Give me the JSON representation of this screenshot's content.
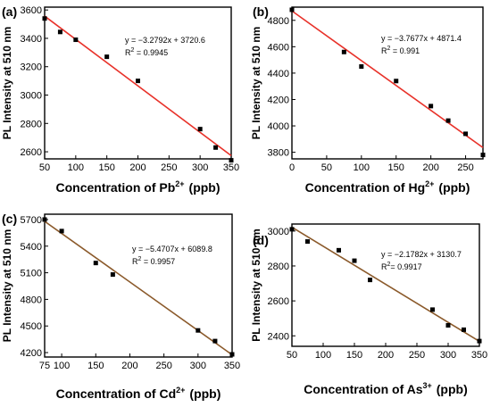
{
  "chart_data": [
    {
      "type": "scatter",
      "panel_label": "(a)",
      "xlabel_main": "Concentration of Pb",
      "xlabel_sup": "2+",
      "xlabel_unit": "(ppb)",
      "ylabel": "PL Intensity at 510 nm",
      "xlim": [
        50,
        350
      ],
      "ylim": [
        2550,
        3620
      ],
      "xticks": [
        50,
        100,
        150,
        200,
        250,
        300,
        350
      ],
      "yticks": [
        2600,
        2800,
        3000,
        3200,
        3400,
        3600
      ],
      "x": [
        50,
        75,
        100,
        150,
        200,
        300,
        325,
        350
      ],
      "y": [
        3540,
        3445,
        3390,
        3270,
        3100,
        2760,
        2630,
        2540
      ],
      "fit": {
        "slope": -3.2792,
        "intercept": 3720.6
      },
      "equation": "y = −3.2792x + 3720.6",
      "r2_prefix": "R",
      "r2_sup": "2",
      "r2_value": " = 0.9945",
      "line_color": "#e8322a"
    },
    {
      "type": "scatter",
      "panel_label": "(b)",
      "xlabel_main": "Concentration of Hg",
      "xlabel_sup": "2+",
      "xlabel_unit": "(ppb)",
      "ylabel": "PL Intensity at 510 nm",
      "xlim": [
        0,
        275
      ],
      "ylim": [
        3750,
        4900
      ],
      "xticks": [
        0,
        50,
        100,
        150,
        200,
        250
      ],
      "yticks": [
        3800,
        4000,
        4200,
        4400,
        4600,
        4800
      ],
      "x": [
        0,
        75,
        100,
        150,
        200,
        225,
        250,
        275
      ],
      "y": [
        4880,
        4560,
        4450,
        4340,
        4150,
        4040,
        3940,
        3780
      ],
      "fit": {
        "slope": -3.7677,
        "intercept": 4871.4
      },
      "equation": "y = −3.7677x + 4871.4",
      "r2_prefix": "R",
      "r2_sup": "2",
      "r2_value": " = 0.991",
      "line_color": "#e8322a"
    },
    {
      "type": "scatter",
      "panel_label": "(c)",
      "xlabel_main": "Concentration of Cd",
      "xlabel_sup": "2+",
      "xlabel_unit": "(ppb)",
      "ylabel": "PL Intensity at 510 nm",
      "xlim": [
        75,
        350
      ],
      "ylim": [
        4150,
        5760
      ],
      "xticks": [
        75,
        100,
        150,
        200,
        250,
        300,
        350
      ],
      "yticks": [
        4200,
        4500,
        4800,
        5100,
        5400,
        5700
      ],
      "x": [
        75,
        100,
        150,
        175,
        300,
        325,
        350
      ],
      "y": [
        5700,
        5570,
        5210,
        5080,
        4450,
        4330,
        4180
      ],
      "fit": {
        "slope": -5.4707,
        "intercept": 6089.8
      },
      "equation": "y = −5.4707x + 6089.8",
      "r2_prefix": "R",
      "r2_sup": "2",
      "r2_value": " = 0.9957",
      "line_color": "#8b5a2b"
    },
    {
      "type": "scatter",
      "panel_label": "(d)",
      "xlabel_main": "Concentration of As",
      "xlabel_sup": "3+",
      "xlabel_unit": "(ppb)",
      "ylabel": "PL Intensity at 510 nm",
      "xlim": [
        50,
        350
      ],
      "ylim": [
        2340,
        3040
      ],
      "xticks": [
        50,
        100,
        150,
        200,
        250,
        300,
        350
      ],
      "yticks": [
        2400,
        2600,
        2800,
        3000
      ],
      "x": [
        50,
        75,
        125,
        150,
        175,
        275,
        300,
        325,
        350
      ],
      "y": [
        3010,
        2940,
        2890,
        2830,
        2720,
        2550,
        2460,
        2435,
        2370
      ],
      "fit": {
        "slope": -2.1782,
        "intercept": 3130.7
      },
      "equation": "y = −2.1782x + 3130.7",
      "r2_prefix": "R",
      "r2_sup": "2",
      "r2_value": "= 0.9917",
      "line_color": "#8b5a2b"
    }
  ]
}
